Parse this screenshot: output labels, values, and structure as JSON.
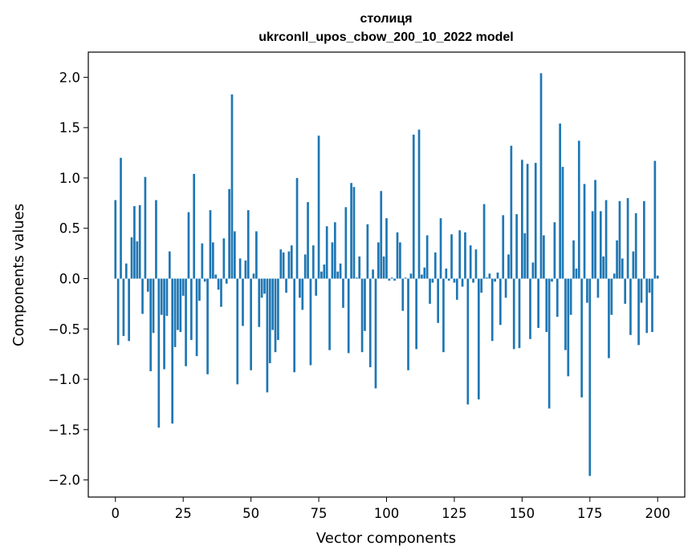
{
  "chart_data": {
    "type": "bar",
    "title": "столиця",
    "subtitle": "ukrconll_upos_cbow_200_10_2022 model",
    "xlabel": "Vector components",
    "ylabel": "Components values",
    "xlim": [
      -10,
      210
    ],
    "ylim": [
      -2.17,
      2.25
    ],
    "xticks": [
      0,
      25,
      50,
      75,
      100,
      125,
      150,
      175,
      200
    ],
    "yticks": [
      -2.0,
      -1.5,
      -1.0,
      -0.5,
      0.0,
      0.5,
      1.0,
      1.5,
      2.0
    ],
    "ytick_labels": [
      "−2.0",
      "−1.5",
      "−1.0",
      "−0.5",
      "0.0",
      "0.5",
      "1.0",
      "1.5",
      "2.0"
    ],
    "grid": false,
    "bar_color": "#1f77b4",
    "values": [
      0.78,
      -0.66,
      1.2,
      -0.57,
      0.15,
      -0.62,
      0.41,
      0.72,
      0.37,
      0.73,
      -0.35,
      1.01,
      -0.13,
      -0.92,
      -0.54,
      0.78,
      -1.48,
      -0.36,
      -0.9,
      -0.37,
      0.27,
      -1.44,
      -0.68,
      -0.51,
      -0.53,
      -0.17,
      -0.87,
      0.66,
      -0.61,
      1.04,
      -0.77,
      -0.22,
      0.35,
      -0.03,
      -0.95,
      0.68,
      0.36,
      0.04,
      -0.11,
      -0.28,
      0.4,
      -0.05,
      0.89,
      1.83,
      0.47,
      -1.05,
      0.2,
      -0.47,
      0.18,
      0.68,
      -0.91,
      0.05,
      0.47,
      -0.48,
      -0.19,
      -0.15,
      -1.13,
      -0.84,
      -0.51,
      -0.73,
      -0.61,
      0.29,
      0.26,
      -0.14,
      0.27,
      0.33,
      -0.93,
      1.0,
      -0.19,
      -0.31,
      0.24,
      0.76,
      -0.86,
      0.33,
      -0.17,
      1.42,
      0.07,
      0.14,
      0.52,
      -0.71,
      0.36,
      0.56,
      0.07,
      0.15,
      -0.29,
      0.71,
      -0.74,
      0.95,
      0.91,
      0.01,
      0.22,
      -0.73,
      -0.52,
      0.54,
      -0.88,
      0.09,
      -1.09,
      0.36,
      0.87,
      0.22,
      0.6,
      -0.02,
      0.01,
      -0.02,
      0.46,
      0.36,
      -0.32,
      0.01,
      -0.91,
      0.05,
      1.43,
      -0.7,
      1.48,
      0.04,
      0.11,
      0.43,
      -0.25,
      -0.04,
      0.26,
      -0.44,
      0.6,
      -0.73,
      0.1,
      -0.02,
      0.44,
      -0.04,
      -0.21,
      0.48,
      -0.08,
      0.46,
      -1.25,
      0.33,
      -0.04,
      0.29,
      -1.2,
      -0.14,
      0.74,
      0.01,
      0.05,
      -0.62,
      -0.03,
      0.06,
      -0.46,
      0.63,
      -0.19,
      0.24,
      1.32,
      -0.7,
      0.64,
      -0.69,
      1.18,
      0.45,
      1.14,
      -0.6,
      0.16,
      1.15,
      -0.49,
      2.04,
      0.43,
      -0.53,
      -1.29,
      -0.03,
      0.56,
      -0.38,
      1.54,
      1.11,
      -0.71,
      -0.97,
      -0.36,
      0.38,
      0.1,
      1.37,
      -1.18,
      0.94,
      -0.24,
      -1.96,
      0.67,
      0.98,
      -0.19,
      0.67,
      0.22,
      0.78,
      -0.79,
      -0.36,
      0.05,
      0.38,
      0.77,
      0.2,
      -0.25,
      0.8,
      -0.56,
      0.27,
      0.65,
      -0.66,
      -0.24,
      0.77,
      -0.54,
      -0.14,
      -0.53,
      1.17,
      0.03
    ]
  }
}
